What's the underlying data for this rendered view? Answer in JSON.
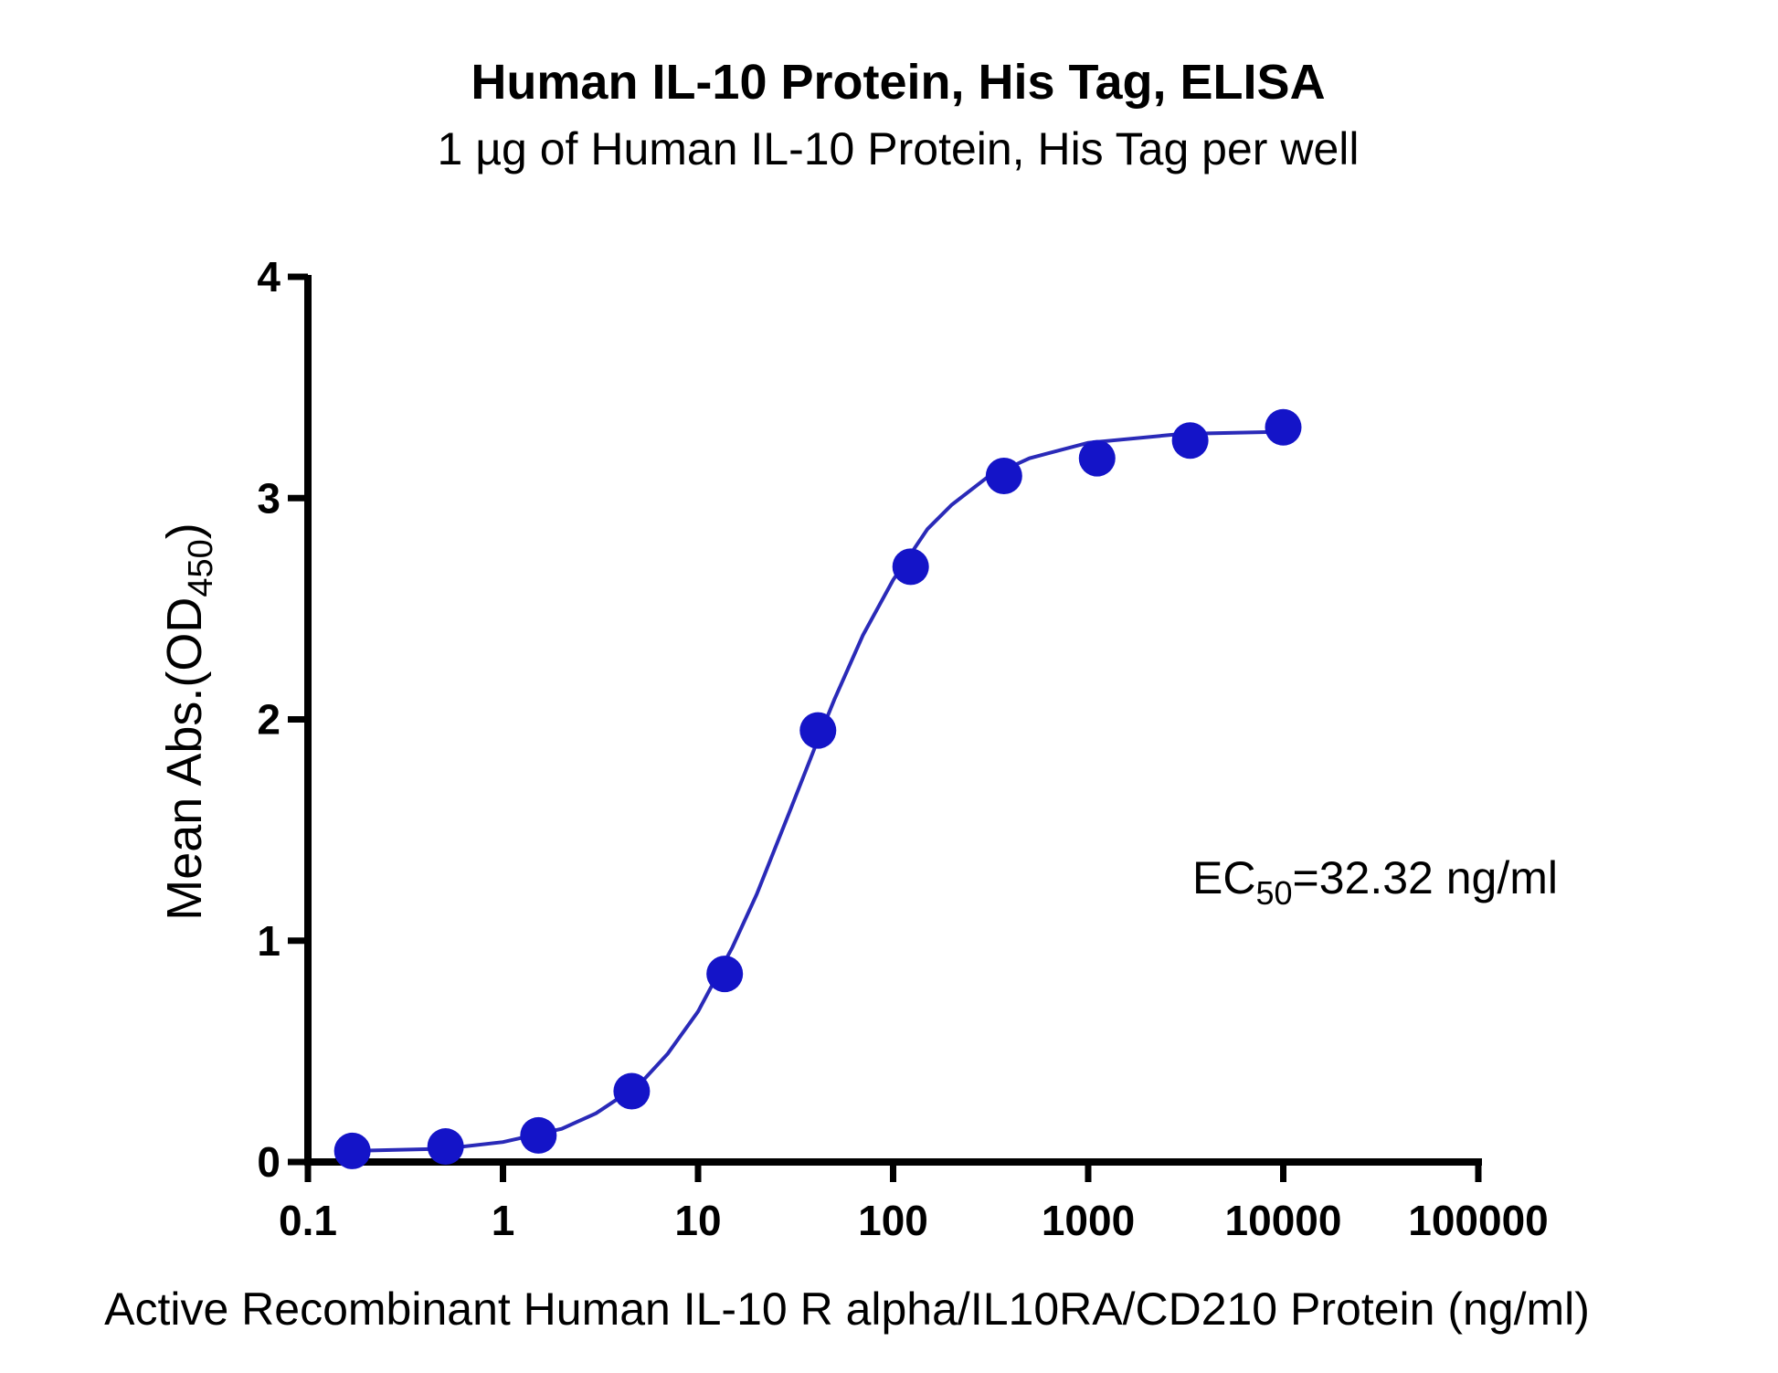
{
  "chart_data": {
    "type": "scatter",
    "title": "Human IL-10 Protein, His Tag, ELISA",
    "subtitle": "1 µg of Human IL-10 Protein, His Tag per well",
    "x_label": "Active Recombinant Human IL-10 R alpha/IL10RA/CD210 Protein (ng/ml)",
    "y_label": {
      "main": "Mean Abs.(OD",
      "sub": "450",
      "end": ")"
    },
    "annotation": {
      "main": "EC",
      "sub": "50",
      "end": "=32.32 ng/ml"
    },
    "x_log": true,
    "xlim": [
      0.1,
      100000
    ],
    "xticks": [
      0.1,
      1,
      10,
      100,
      1000,
      10000,
      100000
    ],
    "ylim": [
      0,
      4
    ],
    "yticks": [
      0,
      1,
      2,
      3,
      4
    ],
    "series": [
      {
        "style": "markers",
        "color": "#1414c8",
        "x": [
          0.169,
          0.508,
          1.52,
          4.57,
          13.7,
          41.2,
          123,
          370,
          1111,
          3333,
          10000
        ],
        "values": [
          0.05,
          0.07,
          0.12,
          0.32,
          0.85,
          1.95,
          2.69,
          3.1,
          3.18,
          3.26,
          3.32
        ]
      },
      {
        "style": "line",
        "color": "#2a2ab8",
        "x": [
          0.169,
          0.5,
          1,
          2,
          3,
          5,
          7,
          10,
          15,
          20,
          30,
          40,
          50,
          70,
          100,
          150,
          200,
          300,
          500,
          1000,
          3000,
          10000
        ],
        "values": [
          0.05,
          0.06,
          0.09,
          0.15,
          0.22,
          0.35,
          0.49,
          0.68,
          0.97,
          1.21,
          1.6,
          1.88,
          2.09,
          2.38,
          2.63,
          2.86,
          2.97,
          3.09,
          3.18,
          3.25,
          3.29,
          3.3
        ]
      }
    ]
  }
}
